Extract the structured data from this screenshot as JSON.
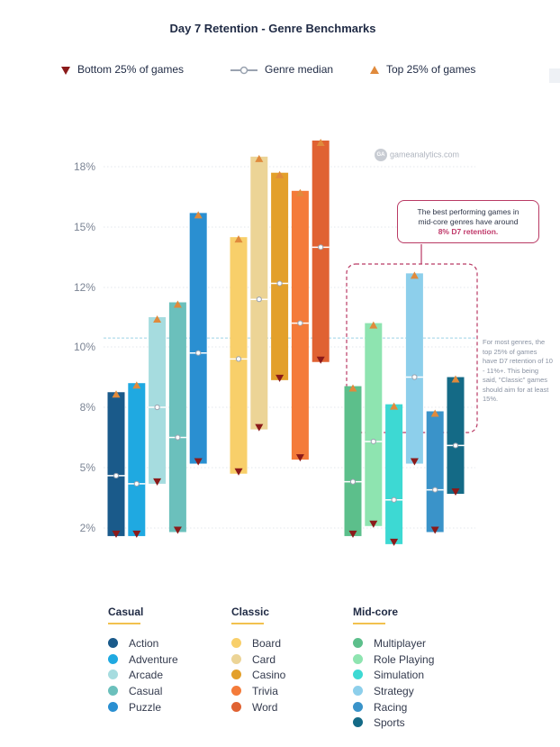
{
  "title": "Day 7 Retention - Genre Benchmarks",
  "legend": {
    "bottom": "Bottom 25% of games",
    "median": "Genre median",
    "top": "Top 25% of games"
  },
  "watermark": "gameanalytics.com",
  "watermark_logo": "GA",
  "annotation": {
    "line1": "The best performing games in",
    "line2": "mid-core genres have around",
    "highlight": "8% D7 retention."
  },
  "side_note": "For most genres, the top 25% of games have D7 retention of 10 - 11%+. This being said, \"Classic\" games should aim for at least 15%.",
  "colors": {
    "bottom_marker": "#8b1a1a",
    "top_marker": "#e08a3c",
    "median_line": "#9aa3b0",
    "reference_line": "#9ed3e6",
    "mid_core_box": "#b93a64"
  },
  "chart_data": {
    "type": "bar",
    "subtype": "floating-range",
    "y_ticks": [
      "2%",
      "5%",
      "8%",
      "10%",
      "12%",
      "15%",
      "18%"
    ],
    "y_tick_values": [
      2,
      5,
      8,
      10,
      12,
      15,
      18
    ],
    "reference_line": 10.3,
    "grid": true,
    "legend_position": "top",
    "groups": [
      {
        "name": "Casual",
        "series": [
          {
            "name": "Action",
            "color": "#1a5a8a",
            "bottom": 1.6,
            "median": 4.6,
            "top": 8.5
          },
          {
            "name": "Adventure",
            "color": "#1fa9e1",
            "bottom": 1.6,
            "median": 4.2,
            "top": 8.8
          },
          {
            "name": "Arcade",
            "color": "#a6dcdf",
            "bottom": 4.2,
            "median": 8.0,
            "top": 11.0
          },
          {
            "name": "Casual",
            "color": "#6bc0bc",
            "bottom": 1.8,
            "median": 6.5,
            "top": 11.5
          },
          {
            "name": "Puzzle",
            "color": "#2a8fd1",
            "bottom": 5.2,
            "median": 9.8,
            "top": 15.7
          }
        ]
      },
      {
        "name": "Classic",
        "series": [
          {
            "name": "Board",
            "color": "#f8cf6a",
            "bottom": 4.7,
            "median": 9.6,
            "top": 14.5
          },
          {
            "name": "Card",
            "color": "#ecd496",
            "bottom": 6.9,
            "median": 11.6,
            "top": 18.5
          },
          {
            "name": "Casino",
            "color": "#e3a02b",
            "bottom": 8.9,
            "median": 12.2,
            "top": 17.7
          },
          {
            "name": "Trivia",
            "color": "#f47b3a",
            "bottom": 5.4,
            "median": 10.8,
            "top": 16.8
          },
          {
            "name": "Word",
            "color": "#e06232",
            "bottom": 9.5,
            "median": 14.0,
            "top": 19.3
          }
        ]
      },
      {
        "name": "Mid-core",
        "series": [
          {
            "name": "Multiplayer",
            "color": "#5cbf8b",
            "bottom": 1.6,
            "median": 4.3,
            "top": 8.7
          },
          {
            "name": "Role Playing",
            "color": "#8ee4b0",
            "bottom": 2.1,
            "median": 6.3,
            "top": 10.8
          },
          {
            "name": "Simulation",
            "color": "#3dd9d3",
            "bottom": 1.2,
            "median": 3.4,
            "top": 8.1
          },
          {
            "name": "Strategy",
            "color": "#8dcfeb",
            "bottom": 5.2,
            "median": 9.0,
            "top": 12.7
          },
          {
            "name": "Racing",
            "color": "#3a93c9",
            "bottom": 1.8,
            "median": 3.9,
            "top": 7.8
          },
          {
            "name": "Sports",
            "color": "#146a86",
            "bottom": 3.7,
            "median": 6.1,
            "top": 9.0
          }
        ]
      }
    ]
  }
}
